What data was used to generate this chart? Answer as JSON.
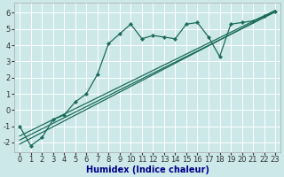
{
  "xlabel": "Humidex (Indice chaleur)",
  "bg_color": "#cce8e8",
  "grid_color": "#ffffff",
  "line_color": "#1a6b5a",
  "xlim": [
    -0.5,
    23.5
  ],
  "ylim": [
    -2.6,
    6.6
  ],
  "xticks": [
    0,
    1,
    2,
    3,
    4,
    5,
    6,
    7,
    8,
    9,
    10,
    11,
    12,
    13,
    14,
    15,
    16,
    17,
    18,
    19,
    20,
    21,
    22,
    23
  ],
  "yticks": [
    -2,
    -1,
    0,
    1,
    2,
    3,
    4,
    5,
    6
  ],
  "main_x": [
    0,
    1,
    2,
    3,
    4,
    5,
    6,
    7,
    8,
    9,
    10,
    11,
    12,
    13,
    14,
    15,
    16,
    17,
    18,
    19,
    20,
    21,
    22,
    23
  ],
  "main_y": [
    -1.0,
    -2.2,
    -1.7,
    -0.6,
    -0.3,
    0.5,
    1.0,
    2.2,
    4.1,
    4.7,
    5.3,
    4.4,
    4.6,
    4.5,
    4.4,
    5.3,
    5.4,
    4.5,
    3.3,
    5.3,
    5.4,
    5.5,
    5.8,
    6.1
  ],
  "trend1_x": [
    0,
    23
  ],
  "trend1_y": [
    -2.1,
    6.1
  ],
  "trend2_x": [
    0,
    23
  ],
  "trend2_y": [
    -1.6,
    6.15
  ],
  "trend3_x": [
    0,
    23
  ],
  "trend3_y": [
    -1.85,
    6.05
  ],
  "xlabel_color": "#00008b",
  "xlabel_fontsize": 7,
  "tick_fontsize": 6,
  "tick_color": "#333333"
}
